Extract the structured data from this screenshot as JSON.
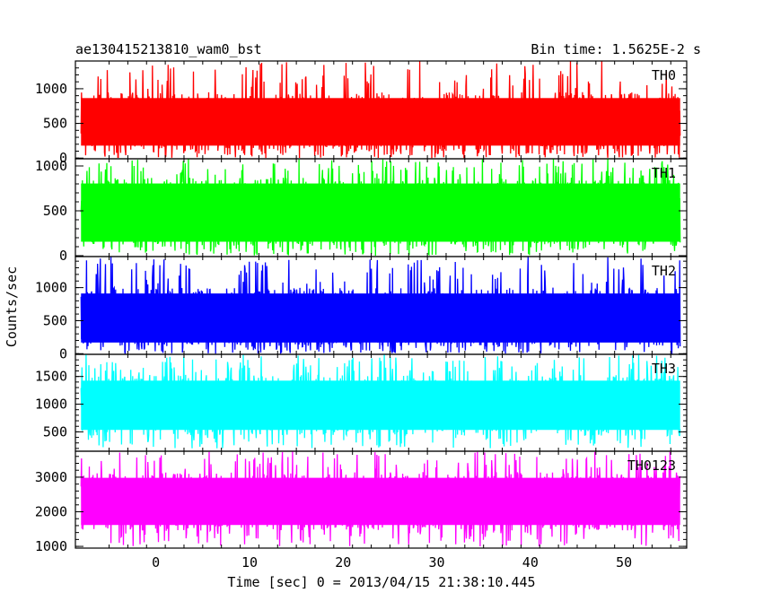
{
  "chart_data": {
    "type": "line",
    "title": "ae130415213810_wam0_bst",
    "subtitle": "Bin time: 1.5625E-2 s",
    "xlabel": "Time [sec] 0 = 2013/04/15 21:38:10.445",
    "ylabel": "Counts/sec",
    "xlim": [
      -8.6,
      56.7
    ],
    "data_x_range": [
      -8.0,
      56.0
    ],
    "x_ticks": [
      0,
      10,
      20,
      30,
      40,
      50
    ],
    "panels": [
      {
        "name": "TH0",
        "color": "#ff0000",
        "ylim": [
          -10,
          1400
        ],
        "y_ticks": [
          0,
          500,
          1000
        ],
        "band": [
          95,
          950
        ],
        "mean": 520,
        "spike_min": 0,
        "spike_max": 1400
      },
      {
        "name": "TH1",
        "color": "#00ff00",
        "ylim": [
          -10,
          1080
        ],
        "y_ticks": [
          0,
          500,
          1000
        ],
        "band": [
          90,
          870
        ],
        "mean": 480,
        "spike_min": 0,
        "spike_max": 1080
      },
      {
        "name": "TH2",
        "color": "#0000ff",
        "ylim": [
          -10,
          1470
        ],
        "y_ticks": [
          0,
          500,
          1000
        ],
        "band": [
          80,
          1000
        ],
        "mean": 560,
        "spike_min": 0,
        "spike_max": 1470
      },
      {
        "name": "TH3",
        "color": "#00ffff",
        "ylim": [
          150,
          1900
        ],
        "y_ticks": [
          500,
          1000,
          1500
        ],
        "band": [
          430,
          1530
        ],
        "mean": 980,
        "spike_min": 200,
        "spike_max": 1900
      },
      {
        "name": "TH0123",
        "color": "#ff00ff",
        "ylim": [
          950,
          3750
        ],
        "y_ticks": [
          1000,
          2000,
          3000
        ],
        "band": [
          1450,
          3150
        ],
        "mean": 2300,
        "spike_min": 1000,
        "spike_max": 3750
      }
    ]
  }
}
